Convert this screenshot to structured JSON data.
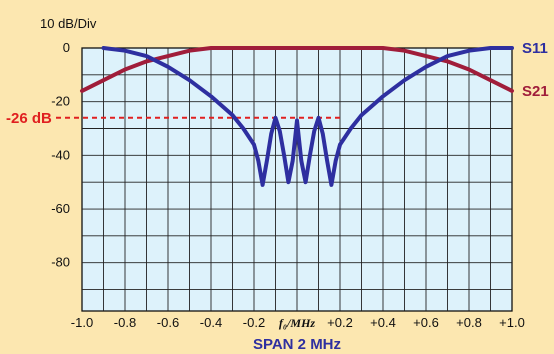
{
  "chart_data": {
    "type": "line",
    "y_unit_label": "10 dB/Div",
    "x_center_label": "f₀/MHz",
    "span_label": "SPAN 2 MHz",
    "xlim": [
      -1.0,
      1.0
    ],
    "ylim": [
      -98,
      0
    ],
    "x_ticks": [
      -1.0,
      -0.8,
      -0.6,
      -0.4,
      -0.2,
      0,
      0.2,
      0.4,
      0.6,
      0.8,
      1.0
    ],
    "x_tick_labels": [
      "-1.0",
      "-0.8",
      "-0.6",
      "-0.4",
      "-0.2",
      "",
      "+0.2",
      "+0.4",
      "+0.6",
      "+0.8",
      "+1.0"
    ],
    "y_ticks": [
      0,
      -20,
      -40,
      -60,
      -80
    ],
    "y_tick_labels": [
      "0",
      "-20",
      "-40",
      "-60",
      "-80"
    ],
    "grid": true,
    "marker": {
      "label": "-26 dB",
      "value": -26,
      "x_from": -1.0,
      "x_to": 0.2
    },
    "series": [
      {
        "name": "S11",
        "color": "#2E2FA0",
        "x": [
          -0.9,
          -0.8,
          -0.7,
          -0.6,
          -0.5,
          -0.4,
          -0.3,
          -0.25,
          -0.2,
          -0.18,
          -0.16,
          -0.14,
          -0.12,
          -0.1,
          -0.08,
          -0.06,
          -0.04,
          -0.02,
          0.0,
          0.02,
          0.04,
          0.06,
          0.08,
          0.1,
          0.12,
          0.14,
          0.16,
          0.18,
          0.2,
          0.25,
          0.3,
          0.4,
          0.5,
          0.6,
          0.7,
          0.8,
          0.9,
          1.0
        ],
        "y": [
          0,
          -1,
          -3,
          -7,
          -12,
          -18,
          -25,
          -30,
          -36,
          -42,
          -51,
          -42,
          -32,
          -26,
          -31,
          -40,
          -50,
          -42,
          -27,
          -42,
          -50,
          -40,
          -31,
          -26,
          -32,
          -42,
          -51,
          -42,
          -36,
          -30,
          -25,
          -18,
          -12,
          -7,
          -3,
          -1,
          0,
          0
        ]
      },
      {
        "name": "S21",
        "color": "#A01D3A",
        "x": [
          -1.0,
          -0.9,
          -0.8,
          -0.7,
          -0.6,
          -0.5,
          -0.4,
          -0.3,
          -0.2,
          -0.1,
          0.0,
          0.1,
          0.2,
          0.3,
          0.4,
          0.5,
          0.6,
          0.7,
          0.8,
          0.9,
          1.0
        ],
        "y": [
          -16,
          -12,
          -8,
          -5,
          -3,
          -1,
          0,
          0,
          0,
          0,
          0,
          0,
          0,
          0,
          0,
          -1,
          -3,
          -5,
          -8,
          -12,
          -16
        ]
      }
    ]
  }
}
